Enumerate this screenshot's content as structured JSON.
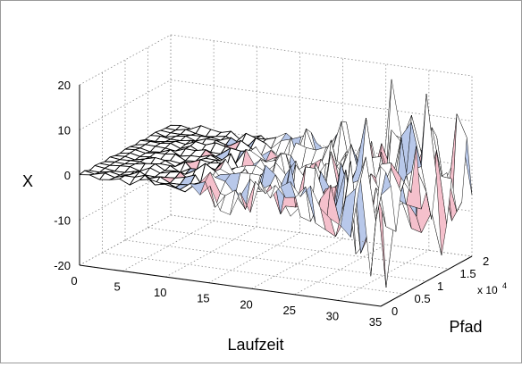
{
  "chart_data": {
    "type": "surface",
    "title": "",
    "xlabel": "Laufzeit",
    "ylabel": "Pfad",
    "zlabel": "X",
    "xlim": [
      0,
      35
    ],
    "ylim": [
      0,
      20000
    ],
    "zlim": [
      -20,
      20
    ],
    "x_ticks": [
      "0",
      "5",
      "10",
      "15",
      "20",
      "25",
      "30",
      "35"
    ],
    "y_ticks": [
      "0",
      "0.5",
      "1",
      "1.5",
      "2"
    ],
    "y_tick_multiplier": "x 10^4",
    "z_ticks": [
      "-20",
      "-10",
      "0",
      "10",
      "20"
    ],
    "grid": true,
    "colormap": [
      "#c8103a",
      "#f5c0cc",
      "#ffffff",
      "#b8c8ea",
      "#27408b"
    ],
    "edge_color": "#000000",
    "description_values": {
      "mean_level": 0,
      "amplitude_by_x": [
        [
          0,
          0.3
        ],
        [
          10,
          1.2
        ],
        [
          20,
          5
        ],
        [
          30,
          9
        ],
        [
          35,
          12
        ]
      ]
    }
  }
}
